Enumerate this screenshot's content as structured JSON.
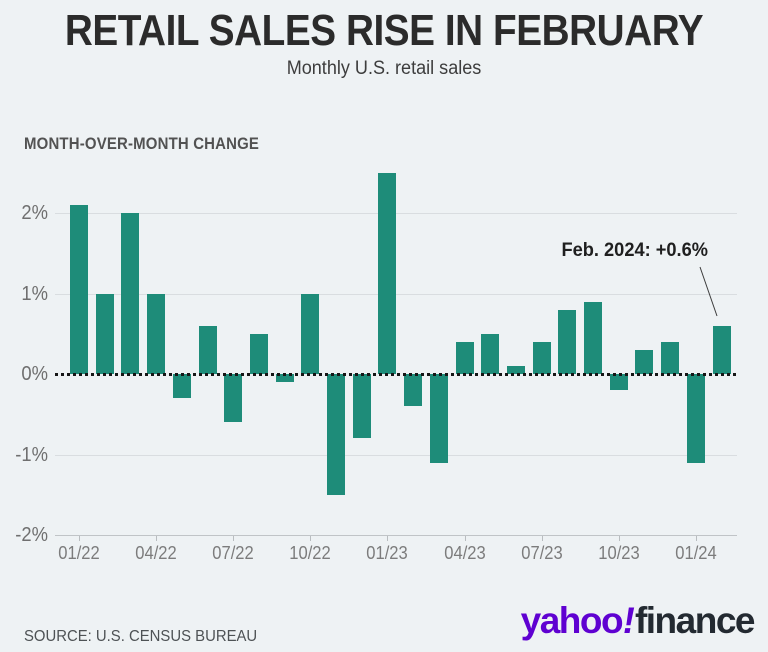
{
  "header": {
    "title": "RETAIL SALES RISE IN FEBRUARY",
    "subtitle": "Monthly U.S. retail sales",
    "section_label": "MONTH-OVER-MONTH CHANGE"
  },
  "chart_data": {
    "type": "bar",
    "title": "RETAIL SALES RISE IN FEBRUARY",
    "subtitle": "Monthly U.S. retail sales",
    "ylabel": "MONTH-OVER-MONTH CHANGE",
    "categories": [
      "01/22",
      "02/22",
      "03/22",
      "04/22",
      "05/22",
      "06/22",
      "07/22",
      "08/22",
      "09/22",
      "10/22",
      "11/22",
      "12/22",
      "01/23",
      "02/23",
      "03/23",
      "04/23",
      "05/23",
      "06/23",
      "07/23",
      "08/23",
      "09/23",
      "10/23",
      "11/23",
      "12/23",
      "01/24",
      "02/24"
    ],
    "values": [
      2.1,
      1.0,
      2.0,
      1.0,
      -0.3,
      0.6,
      -0.6,
      0.5,
      -0.1,
      1.0,
      -1.5,
      -0.8,
      2.5,
      -0.4,
      -1.1,
      0.4,
      0.5,
      0.1,
      0.4,
      0.8,
      0.9,
      -0.2,
      0.3,
      0.4,
      -1.1,
      0.6
    ],
    "x_tick_labels": [
      "01/22",
      "04/22",
      "07/22",
      "10/22",
      "01/23",
      "04/23",
      "07/23",
      "10/23",
      "01/24"
    ],
    "y_ticks": [
      2,
      1,
      0,
      -1,
      -2
    ],
    "y_tick_labels": [
      "2%",
      "1%",
      "0%",
      "-1%",
      "-2%"
    ],
    "ylim": [
      -2,
      2.55
    ],
    "grid": "horizontal",
    "zero_line": "dotted",
    "legend": "none",
    "bar_color": "#1e8c79",
    "annotation": {
      "text": "Feb. 2024: +0.6%",
      "target_category": "02/24",
      "target_value": 0.6
    }
  },
  "footer": {
    "source": "SOURCE: U.S. CENSUS BUREAU",
    "logo": {
      "yahoo": "yahoo",
      "exclamation": "!",
      "finance": "finance",
      "yahoo_color": "#5f01d1",
      "finance_color": "#232a31"
    }
  },
  "colors": {
    "background": "#eef2f4",
    "bar": "#1e8c79",
    "gridline": "#d9dde0",
    "zero_line": "#161616",
    "axis_text": "#7c7c7c",
    "title_text": "#2b2b2b"
  }
}
